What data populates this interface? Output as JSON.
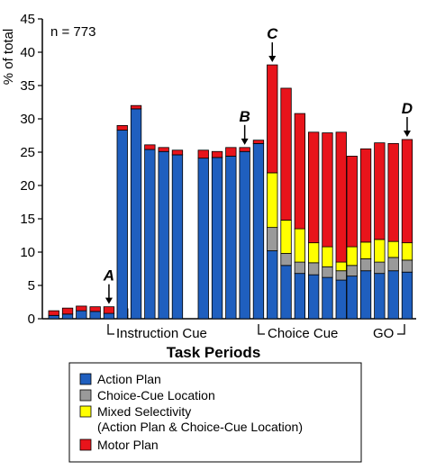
{
  "chart_data": {
    "type": "bar",
    "stacked": true,
    "ylabel": "% of total",
    "xlabel": "Task Periods",
    "ylim": [
      0,
      45
    ],
    "yticks": [
      0,
      5,
      10,
      15,
      20,
      25,
      30,
      35,
      40,
      45
    ],
    "annotation_n": "n = 773",
    "period_labels": [
      "Instruction Cue",
      "Choice Cue",
      "GO"
    ],
    "series": [
      {
        "name": "Action Plan",
        "color": "#1f5fbf"
      },
      {
        "name": "Choice-Cue Location",
        "color": "#9a9a9a"
      },
      {
        "name": "Mixed Selectivity\n(Action Plan & Choice-Cue Location)",
        "color": "#ffff00"
      },
      {
        "name": "Motor Plan",
        "color": "#e8141b"
      }
    ],
    "groups": [
      {
        "bars": [
          {
            "values": [
              0.5,
              0,
              0,
              0.7
            ]
          },
          {
            "values": [
              0.7,
              0,
              0,
              0.9
            ]
          },
          {
            "values": [
              1.2,
              0,
              0,
              0.7
            ]
          },
          {
            "values": [
              1.1,
              0,
              0,
              0.7
            ]
          },
          {
            "values": [
              0.8,
              0,
              0,
              1.0
            ],
            "marker": "A"
          },
          {
            "values": [
              0.5,
              0,
              0,
              1.0
            ]
          }
        ]
      },
      {
        "bars": [
          {
            "values": [
              28.3,
              0,
              0,
              0.7
            ]
          },
          {
            "values": [
              31.5,
              0,
              0,
              0.5
            ]
          },
          {
            "values": [
              25.4,
              0,
              0,
              0.7
            ]
          },
          {
            "values": [
              25.1,
              0,
              0,
              0.6
            ]
          },
          {
            "values": [
              24.6,
              0,
              0,
              0.7
            ]
          }
        ]
      },
      {
        "bars": [
          {
            "values": [
              24.1,
              0,
              0,
              1.2
            ]
          },
          {
            "values": [
              24.2,
              0,
              0,
              0.9
            ]
          },
          {
            "values": [
              24.4,
              0,
              0,
              1.3
            ]
          },
          {
            "values": [
              25.1,
              0,
              0,
              0.6
            ],
            "marker": "B"
          },
          {
            "values": [
              26.3,
              0,
              0,
              0.5
            ]
          },
          {
            "values": [
              10.2,
              3.5,
              8.2,
              16.2
            ],
            "marker": "C"
          },
          {
            "values": [
              8.0,
              1.8,
              5.0,
              19.8
            ]
          },
          {
            "values": [
              6.8,
              1.7,
              5.0,
              17.3
            ]
          },
          {
            "values": [
              6.6,
              1.8,
              3.0,
              16.6
            ]
          },
          {
            "values": [
              6.2,
              1.6,
              3.0,
              17.1
            ]
          },
          {
            "values": [
              5.8,
              1.4,
              1.3,
              19.5
            ]
          }
        ]
      },
      {
        "bars": [
          {
            "values": [
              6.4,
              1.6,
              2.8,
              13.6
            ]
          },
          {
            "values": [
              7.2,
              1.8,
              2.5,
              14.0
            ]
          },
          {
            "values": [
              6.8,
              1.7,
              3.4,
              14.5
            ]
          },
          {
            "values": [
              7.2,
              2.0,
              2.4,
              14.7
            ]
          },
          {
            "values": [
              7.0,
              1.8,
              2.6,
              15.5
            ],
            "marker": "D"
          }
        ]
      }
    ]
  }
}
